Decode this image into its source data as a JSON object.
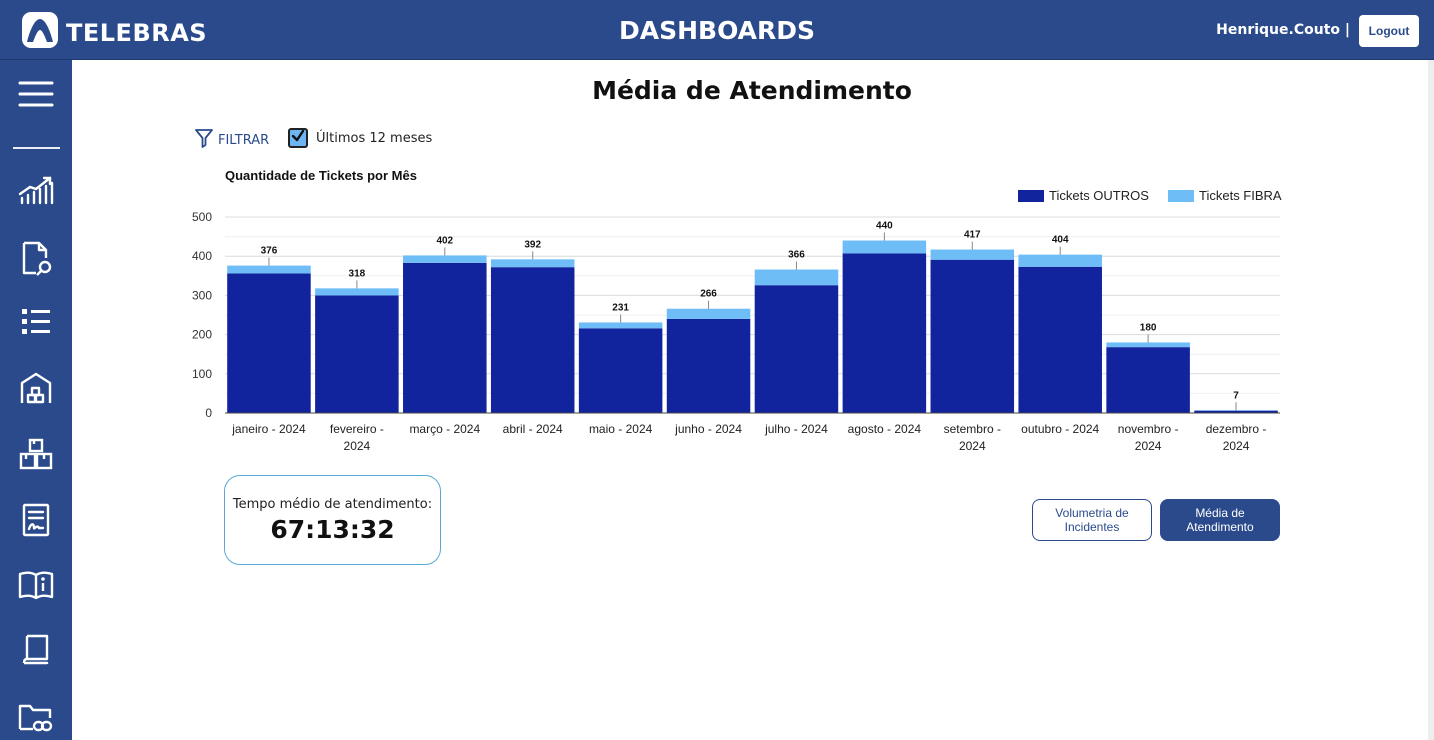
{
  "header": {
    "brand": "TELEBRAS",
    "title": "DASHBOARDS",
    "user": "Henrique.Couto |",
    "logout_label": "Logout"
  },
  "sidebar": {
    "items": [
      {
        "icon": "menu-icon"
      },
      {
        "icon": "trending-chart-icon"
      },
      {
        "icon": "document-wrench-icon"
      },
      {
        "icon": "checklist-icon"
      },
      {
        "icon": "warehouse-icon"
      },
      {
        "icon": "boxes-icon"
      },
      {
        "icon": "signed-document-icon"
      },
      {
        "icon": "book-info-icon"
      },
      {
        "icon": "notebook-icon"
      },
      {
        "icon": "folder-link-icon"
      }
    ]
  },
  "page": {
    "title": "Média de Atendimento",
    "filter_label": "FILTRAR",
    "checkbox_label": "Últimos 12 meses",
    "checkbox_checked": true
  },
  "chart_data": {
    "type": "bar",
    "stacked": true,
    "title": "Quantidade de Tickets por Mês",
    "categories": [
      "janeiro - 2024",
      "fevereiro - 2024",
      "março - 2024",
      "abril - 2024",
      "maio - 2024",
      "junho - 2024",
      "julho - 2024",
      "agosto - 2024",
      "setembro - 2024",
      "outubro - 2024",
      "novembro - 2024",
      "dezembro - 2024"
    ],
    "series": [
      {
        "name": "Tickets OUTROS",
        "color": "#12239e",
        "values": [
          356,
          300,
          383,
          372,
          216,
          240,
          326,
          407,
          391,
          373,
          168,
          6
        ]
      },
      {
        "name": "Tickets FIBRA",
        "color": "#6ebdf6",
        "values": [
          20,
          18,
          19,
          20,
          15,
          26,
          40,
          33,
          26,
          31,
          12,
          1
        ]
      }
    ],
    "totals": [
      376,
      318,
      402,
      392,
      231,
      266,
      366,
      440,
      417,
      404,
      180,
      7
    ],
    "ylim": [
      0,
      500
    ],
    "yticks": [
      0,
      100,
      200,
      300,
      400,
      500
    ],
    "grid": true,
    "legend_position": "top-right"
  },
  "summary": {
    "label": "Tempo médio de atendimento:",
    "value": "67:13:32"
  },
  "buttons": {
    "volumetria": "Volumetria de Incidentes",
    "media": "Média de Atendimento"
  }
}
